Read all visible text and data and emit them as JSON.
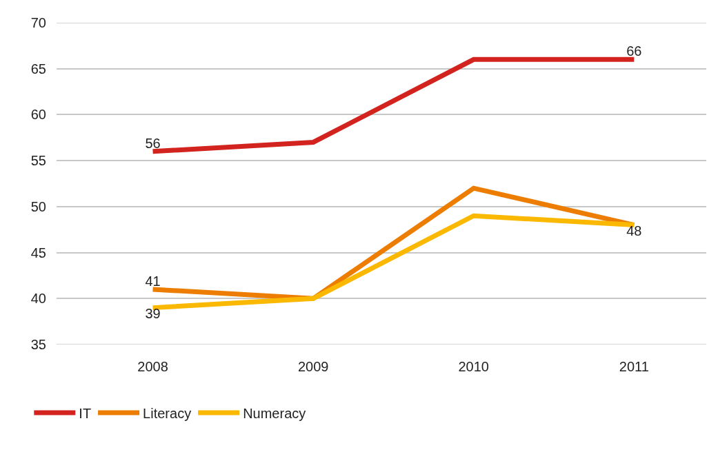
{
  "chart_data": {
    "type": "line",
    "categories": [
      "2008",
      "2009",
      "2010",
      "2011"
    ],
    "ylim": [
      35,
      70
    ],
    "yticks": [
      35,
      40,
      45,
      50,
      55,
      60,
      65,
      70
    ],
    "grid": "y",
    "legend": "bottom left",
    "line_style": "solid",
    "series": [
      {
        "name": "IT",
        "color": "#d2231e",
        "values": [
          56,
          57,
          66,
          66
        ],
        "value_labels": [
          "56",
          null,
          null,
          "66"
        ]
      },
      {
        "name": "Literacy",
        "color": "#ec7d00",
        "values": [
          41,
          40,
          52,
          48
        ],
        "value_labels": [
          "41",
          null,
          null,
          null
        ]
      },
      {
        "name": "Numeracy",
        "color": "#fbb800",
        "values": [
          39,
          40,
          49,
          48
        ],
        "value_labels": [
          "39",
          null,
          null,
          "48"
        ]
      }
    ]
  }
}
